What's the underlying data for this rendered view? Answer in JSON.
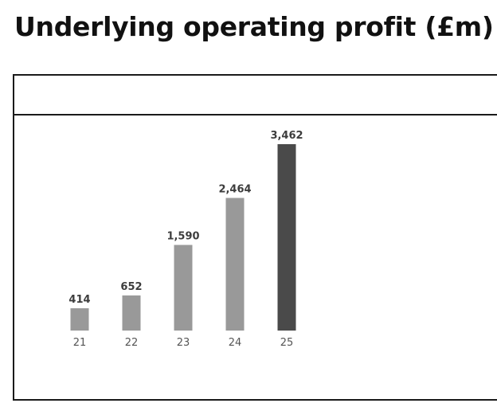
{
  "title": "Underlying operating profit (£m)",
  "chart_data": {
    "type": "bar",
    "categories": [
      "21",
      "22",
      "23",
      "24",
      "25"
    ],
    "values": [
      414,
      652,
      1590,
      2464,
      3462
    ],
    "value_labels": [
      "414",
      "652",
      "1,590",
      "2,464",
      "3,462"
    ],
    "title": "Underlying operating profit (£m)",
    "xlabel": "",
    "ylabel": "",
    "ylim": [
      0,
      3462
    ],
    "grid": false,
    "legend": "none",
    "colors": {
      "default_bar": "#999999",
      "highlight_bar": "#4a4a4a",
      "highlight_index": 4
    }
  }
}
